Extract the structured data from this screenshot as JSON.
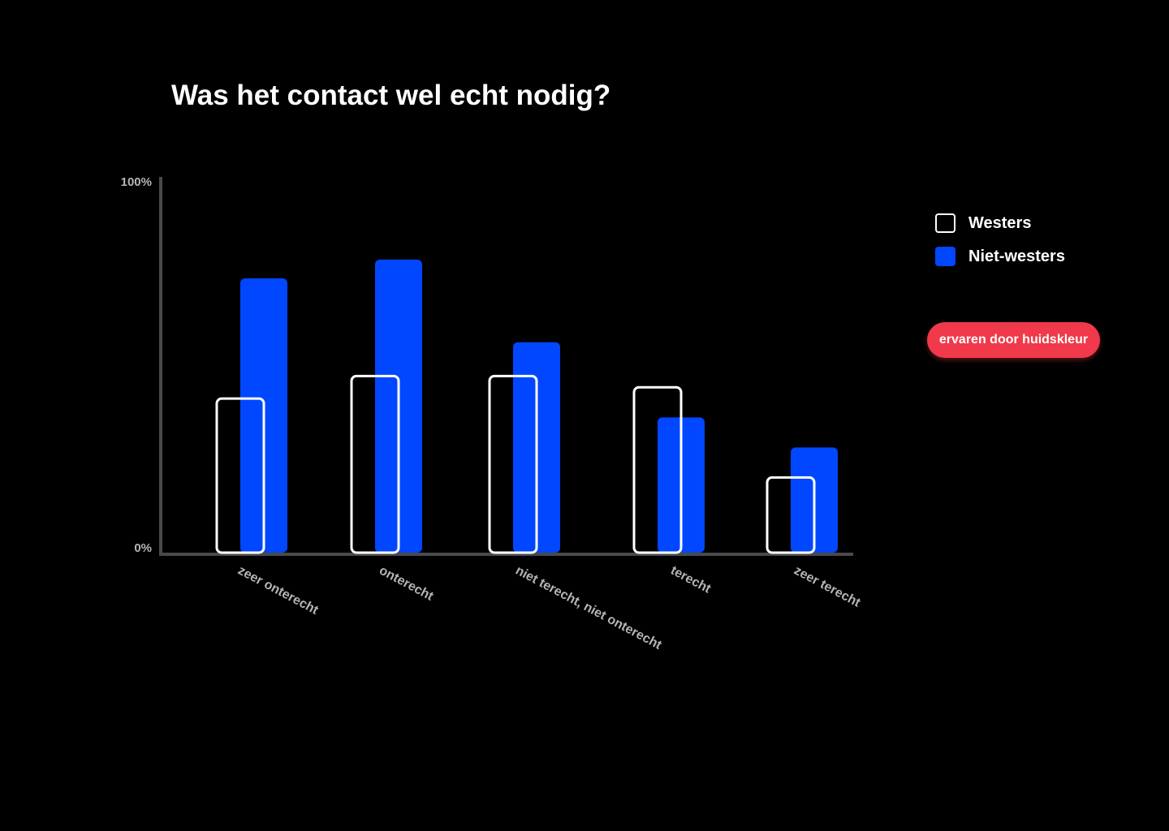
{
  "chart_data": {
    "type": "bar",
    "title": "Was het contact wel echt nodig?",
    "categories": [
      "zeer onterecht",
      "onterecht",
      "niet terecht, niet onterecht",
      "terecht",
      "zeer terecht"
    ],
    "series": [
      {
        "name": "Westers",
        "values": [
          41,
          47,
          47,
          44,
          20
        ],
        "color": "#ffffff",
        "style": "outline"
      },
      {
        "name": "Niet-westers",
        "values": [
          73,
          78,
          56,
          36,
          28
        ],
        "color": "#0047ff",
        "style": "filled"
      }
    ],
    "ylim": [
      0,
      100
    ],
    "yticks": [
      "0%",
      "100%"
    ],
    "grid": false,
    "legend_position": "right"
  },
  "legend": {
    "items": [
      {
        "label": "Westers"
      },
      {
        "label": "Niet-westers"
      }
    ]
  },
  "filter_button": {
    "label": "ervaren door huidskleur",
    "color": "#f0394a"
  }
}
